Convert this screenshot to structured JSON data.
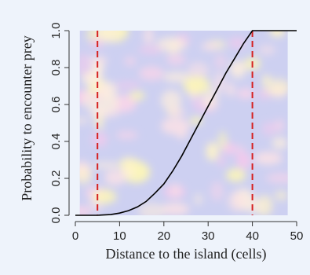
{
  "chart_data": {
    "type": "line",
    "title": "",
    "xlabel": "Distance to the island (cells)",
    "ylabel": "Probability to encounter prey",
    "xlim": [
      0,
      50
    ],
    "ylim": [
      0,
      1
    ],
    "x_ticks": [
      0,
      10,
      20,
      30,
      40,
      50
    ],
    "y_ticks": [
      "0.0",
      "0.2",
      "0.4",
      "0.6",
      "0.8",
      "1.0"
    ],
    "grid": false,
    "series": [
      {
        "x": [
          0,
          5,
          8,
          10,
          12,
          14,
          16,
          18,
          20,
          22,
          24,
          26,
          28,
          30,
          32,
          34,
          36,
          38,
          40,
          45,
          50
        ],
        "y": [
          0.0,
          0.0,
          0.004,
          0.012,
          0.025,
          0.045,
          0.075,
          0.12,
          0.17,
          0.24,
          0.32,
          0.41,
          0.5,
          0.59,
          0.68,
          0.77,
          0.85,
          0.93,
          1.0,
          1.0,
          1.0
        ],
        "color": "#000000"
      }
    ],
    "reference_lines": [
      {
        "axis": "x",
        "value": 5,
        "style": "dashed",
        "color": "#d62020"
      },
      {
        "axis": "x",
        "value": 40,
        "style": "dashed",
        "color": "#d62020"
      }
    ],
    "background": {
      "type": "heatmap",
      "base_color": "#cdd0f1",
      "hot_color": "#fff6b0",
      "x_range": [
        1,
        48
      ]
    }
  }
}
